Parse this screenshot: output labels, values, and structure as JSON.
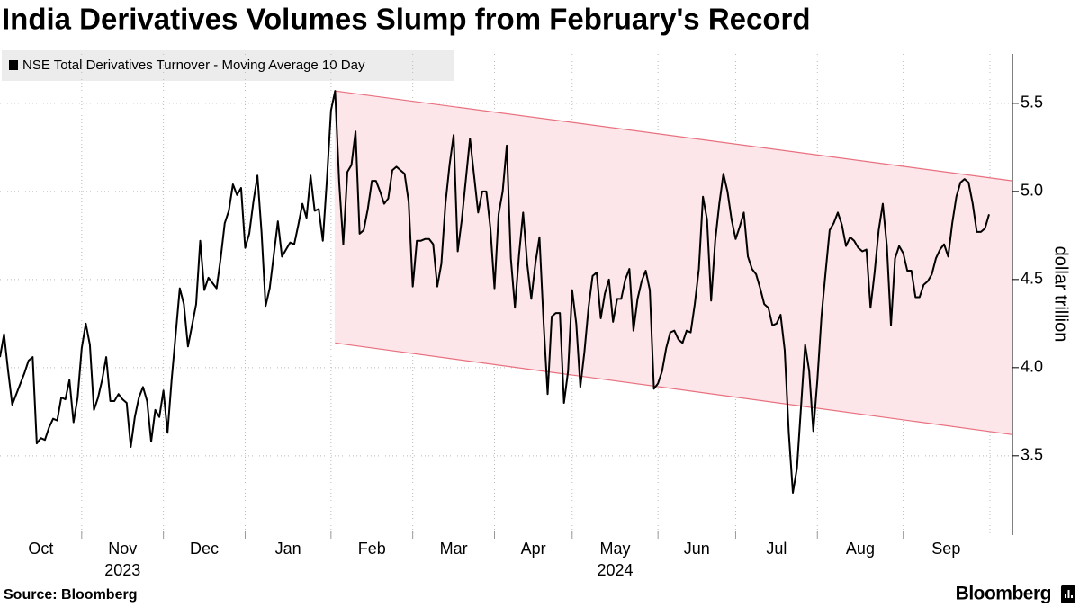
{
  "chart_data": {
    "type": "line",
    "title": "India Derivatives Volumes Slump from February's Record",
    "y_axis_label": "dollar trillion",
    "source": "Source: Bloomberg",
    "brand": "Bloomberg",
    "series": [
      {
        "name": "NSE Total Derivatives Turnover - Moving Average 10 Day",
        "color": "#000000",
        "values": [
          4.06,
          4.19,
          3.98,
          3.79,
          3.85,
          3.91,
          3.97,
          4.04,
          4.06,
          3.57,
          3.6,
          3.59,
          3.66,
          3.71,
          3.7,
          3.83,
          3.82,
          3.93,
          3.69,
          3.83,
          4.11,
          4.25,
          4.13,
          3.76,
          3.83,
          3.93,
          4.06,
          3.81,
          3.81,
          3.85,
          3.82,
          3.8,
          3.55,
          3.72,
          3.83,
          3.89,
          3.81,
          3.58,
          3.76,
          3.72,
          3.87,
          3.63,
          3.93,
          4.19,
          4.45,
          4.36,
          4.12,
          4.24,
          4.36,
          4.72,
          4.44,
          4.51,
          4.48,
          4.45,
          4.62,
          4.82,
          4.89,
          5.04,
          4.98,
          5.02,
          4.68,
          4.76,
          4.94,
          5.09,
          4.77,
          4.35,
          4.45,
          4.64,
          4.83,
          4.63,
          4.67,
          4.71,
          4.7,
          4.81,
          4.93,
          4.85,
          5.09,
          4.89,
          4.9,
          4.72,
          5.07,
          5.46,
          5.57,
          5.05,
          4.7,
          5.11,
          5.15,
          5.34,
          4.76,
          4.78,
          4.9,
          5.06,
          5.06,
          5.0,
          4.93,
          4.96,
          5.12,
          5.14,
          5.12,
          5.1,
          4.94,
          4.46,
          4.72,
          4.72,
          4.73,
          4.73,
          4.7,
          4.46,
          4.59,
          4.93,
          5.15,
          5.32,
          4.66,
          4.84,
          5.07,
          5.3,
          5.09,
          4.88,
          5.0,
          5.0,
          4.79,
          4.45,
          4.87,
          5.0,
          5.26,
          4.62,
          4.34,
          4.64,
          4.88,
          4.59,
          4.39,
          4.59,
          4.74,
          4.26,
          3.85,
          4.29,
          4.31,
          4.31,
          3.8,
          3.98,
          4.44,
          4.25,
          3.89,
          4.09,
          4.34,
          4.52,
          4.54,
          4.28,
          4.42,
          4.5,
          4.26,
          4.39,
          4.39,
          4.5,
          4.56,
          4.21,
          4.39,
          4.49,
          4.55,
          4.44,
          3.88,
          3.91,
          3.98,
          4.11,
          4.2,
          4.21,
          4.16,
          4.14,
          4.21,
          4.2,
          4.36,
          4.56,
          4.97,
          4.84,
          4.38,
          4.72,
          4.93,
          5.1,
          5.0,
          4.84,
          4.73,
          4.8,
          4.88,
          4.63,
          4.56,
          4.53,
          4.45,
          4.36,
          4.34,
          4.24,
          4.25,
          4.3,
          4.1,
          3.63,
          3.29,
          3.43,
          3.78,
          4.13,
          3.98,
          3.64,
          3.93,
          4.29,
          4.54,
          4.78,
          4.82,
          4.88,
          4.81,
          4.69,
          4.74,
          4.72,
          4.68,
          4.66,
          4.67,
          4.34,
          4.54,
          4.78,
          4.93,
          4.69,
          4.24,
          4.62,
          4.69,
          4.65,
          4.55,
          4.55,
          4.4,
          4.4,
          4.47,
          4.49,
          4.53,
          4.62,
          4.67,
          4.7,
          4.63,
          4.82,
          4.97,
          5.05,
          5.07,
          5.05,
          4.93,
          4.77,
          4.77,
          4.79,
          4.87
        ]
      }
    ],
    "categories": [
      "Oct",
      null,
      null,
      null,
      null,
      null,
      null,
      null,
      null,
      null,
      null,
      null,
      null,
      null,
      null,
      null,
      null,
      null,
      null,
      null,
      "Nov",
      null,
      null,
      null,
      null,
      null,
      null,
      null,
      null,
      null,
      null,
      null,
      null,
      null,
      null,
      null,
      null,
      null,
      null,
      null,
      "Dec",
      null,
      null,
      null,
      null,
      null,
      null,
      null,
      null,
      null,
      null,
      null,
      null,
      null,
      null,
      null,
      null,
      null,
      null,
      null,
      "Jan",
      null,
      null,
      null,
      null,
      null,
      null,
      null,
      null,
      null,
      null,
      null,
      null,
      null,
      null,
      null,
      null,
      null,
      null,
      null,
      null,
      "Feb",
      null,
      null,
      null,
      null,
      null,
      null,
      null,
      null,
      null,
      null,
      null,
      null,
      null,
      null,
      null,
      null,
      null,
      null,
      null,
      "Mar",
      null,
      null,
      null,
      null,
      null,
      null,
      null,
      null,
      null,
      null,
      null,
      null,
      null,
      null,
      null,
      null,
      null,
      null,
      null,
      "Apr",
      null,
      null,
      null,
      null,
      null,
      null,
      null,
      null,
      null,
      null,
      null,
      null,
      null,
      null,
      null,
      null,
      null,
      null,
      "May",
      null,
      null,
      null,
      null,
      null,
      null,
      null,
      null,
      null,
      null,
      null,
      null,
      null,
      null,
      null,
      null,
      null,
      null,
      null,
      null,
      "Jun",
      null,
      null,
      null,
      null,
      null,
      null,
      null,
      null,
      null,
      null,
      null,
      null,
      null,
      null,
      null,
      null,
      null,
      null,
      "Jul",
      null,
      null,
      null,
      null,
      null,
      null,
      null,
      null,
      null,
      null,
      null,
      null,
      null,
      null,
      null,
      null,
      null,
      null,
      null,
      "Aug",
      null,
      null,
      null,
      null,
      null,
      null,
      null,
      null,
      null,
      null,
      null,
      null,
      null,
      null,
      null,
      null,
      null,
      null,
      null,
      null,
      "Sep",
      null,
      null,
      null,
      null,
      null,
      null,
      null,
      null,
      null,
      null,
      null,
      null,
      null,
      null,
      null,
      null,
      null,
      null,
      null,
      null,
      null
    ],
    "year_labels": [
      "2023",
      "2024"
    ],
    "channel": {
      "upper": [
        5.57,
        5.06
      ],
      "lower": [
        4.14,
        3.62
      ],
      "color": "#e8707f",
      "fill": "#fde6e9"
    },
    "ylim": [
      3.05,
      5.78
    ],
    "yticks": [
      3.5,
      {
        "value": 4,
        "label": "4.0"
      },
      4.5,
      {
        "value": 5,
        "label": "5.0"
      },
      5.5
    ],
    "grid": true
  }
}
